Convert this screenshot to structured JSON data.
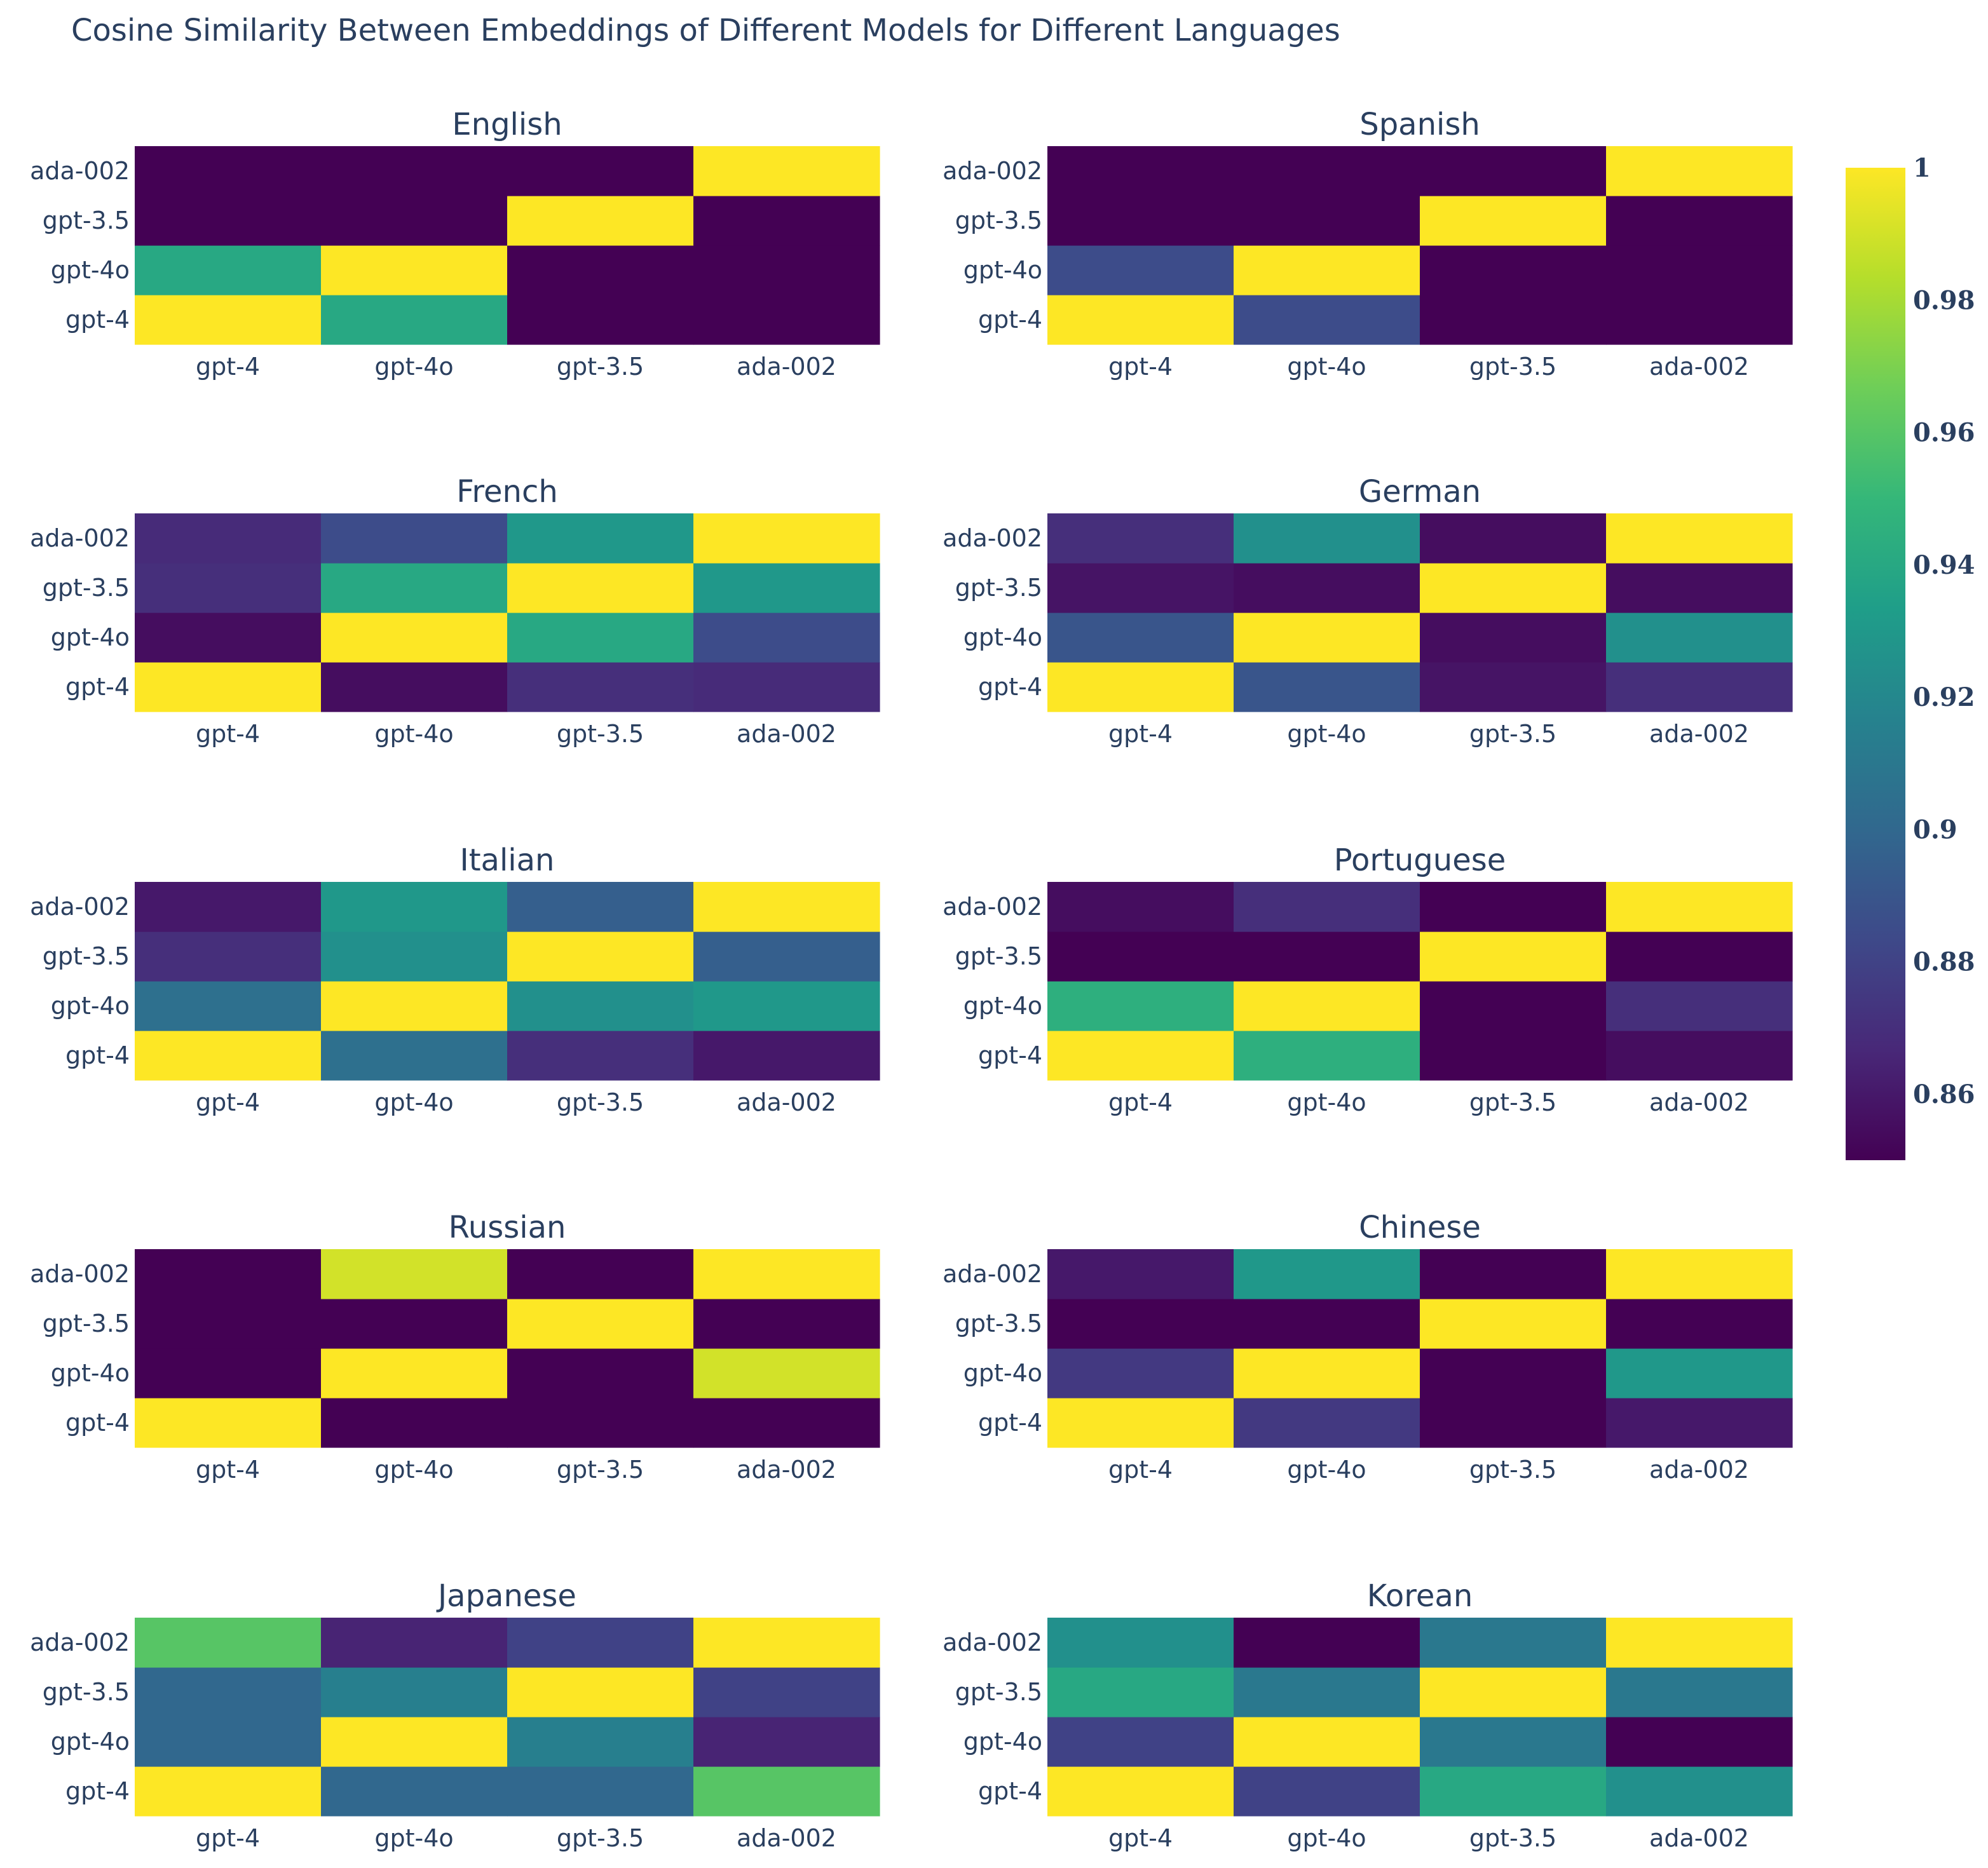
{
  "chart_data": {
    "type": "heatmap",
    "title": "Cosine Similarity Between Embeddings of Different Models for Different Languages",
    "x_categories": [
      "gpt-4",
      "gpt-4o",
      "gpt-3.5",
      "ada-002"
    ],
    "y_categories": [
      "gpt-4",
      "gpt-4o",
      "gpt-3.5",
      "ada-002"
    ],
    "colorscale": "Viridis",
    "zlim": [
      0.85,
      1.0
    ],
    "colorbar": {
      "ticks": [
        0.86,
        0.88,
        0.9,
        0.92,
        0.94,
        0.96,
        0.98,
        1
      ],
      "tick_labels": [
        "0.86",
        "0.88",
        "0.9",
        "0.92",
        "0.94",
        "0.96",
        "0.98",
        "1"
      ]
    },
    "panels": [
      {
        "title": "English",
        "z": [
          [
            1.0,
            0.94,
            0.85,
            0.85
          ],
          [
            0.94,
            1.0,
            0.85,
            0.85
          ],
          [
            0.85,
            0.85,
            1.0,
            0.85
          ],
          [
            0.85,
            0.85,
            0.85,
            1.0
          ]
        ]
      },
      {
        "title": "Spanish",
        "z": [
          [
            1.0,
            0.885,
            0.85,
            0.85
          ],
          [
            0.885,
            1.0,
            0.85,
            0.85
          ],
          [
            0.85,
            0.85,
            1.0,
            0.85
          ],
          [
            0.85,
            0.85,
            0.85,
            1.0
          ]
        ]
      },
      {
        "title": "French",
        "z": [
          [
            1.0,
            0.855,
            0.87,
            0.868
          ],
          [
            0.855,
            1.0,
            0.94,
            0.885
          ],
          [
            0.87,
            0.94,
            1.0,
            0.93
          ],
          [
            0.868,
            0.885,
            0.93,
            1.0
          ]
        ]
      },
      {
        "title": "German",
        "z": [
          [
            1.0,
            0.89,
            0.858,
            0.87
          ],
          [
            0.89,
            1.0,
            0.855,
            0.925
          ],
          [
            0.858,
            0.855,
            1.0,
            0.855
          ],
          [
            0.87,
            0.925,
            0.855,
            1.0
          ]
        ]
      },
      {
        "title": "Italian",
        "z": [
          [
            1.0,
            0.905,
            0.87,
            0.86
          ],
          [
            0.905,
            1.0,
            0.925,
            0.93
          ],
          [
            0.87,
            0.925,
            1.0,
            0.895
          ],
          [
            0.86,
            0.93,
            0.895,
            1.0
          ]
        ]
      },
      {
        "title": "Portuguese",
        "z": [
          [
            1.0,
            0.945,
            0.85,
            0.855
          ],
          [
            0.945,
            1.0,
            0.85,
            0.87
          ],
          [
            0.85,
            0.85,
            1.0,
            0.85
          ],
          [
            0.855,
            0.87,
            0.85,
            1.0
          ]
        ]
      },
      {
        "title": "Russian",
        "z": [
          [
            1.0,
            0.85,
            0.85,
            0.85
          ],
          [
            0.85,
            1.0,
            0.85,
            0.99
          ],
          [
            0.85,
            0.85,
            1.0,
            0.85
          ],
          [
            0.85,
            0.99,
            0.85,
            1.0
          ]
        ]
      },
      {
        "title": "Chinese",
        "z": [
          [
            1.0,
            0.875,
            0.85,
            0.86
          ],
          [
            0.875,
            1.0,
            0.85,
            0.93
          ],
          [
            0.85,
            0.85,
            1.0,
            0.85
          ],
          [
            0.86,
            0.93,
            0.85,
            1.0
          ]
        ]
      },
      {
        "title": "Japanese",
        "z": [
          [
            1.0,
            0.9,
            0.9,
            0.96
          ],
          [
            0.9,
            1.0,
            0.915,
            0.865
          ],
          [
            0.9,
            0.915,
            1.0,
            0.88
          ],
          [
            0.96,
            0.865,
            0.88,
            1.0
          ]
        ]
      },
      {
        "title": "Korean",
        "z": [
          [
            1.0,
            0.88,
            0.94,
            0.925
          ],
          [
            0.88,
            1.0,
            0.91,
            0.85
          ],
          [
            0.94,
            0.91,
            1.0,
            0.91
          ],
          [
            0.925,
            0.85,
            0.91,
            1.0
          ]
        ]
      }
    ]
  }
}
